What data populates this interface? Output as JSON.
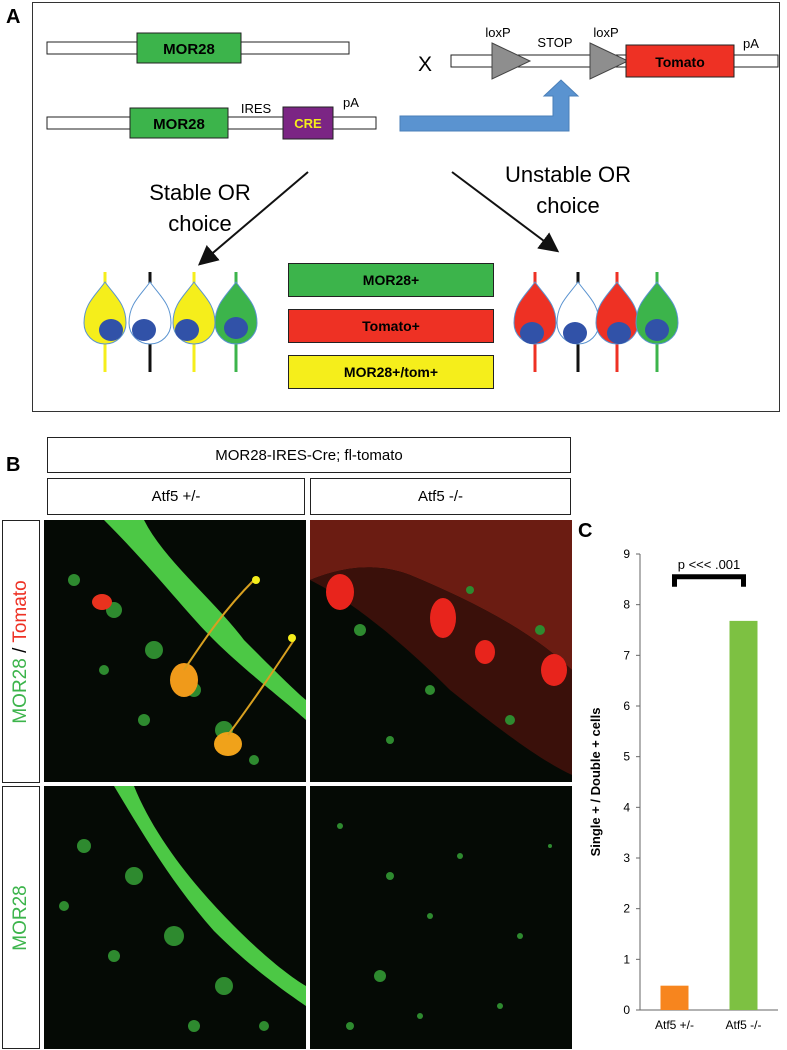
{
  "panelA": {
    "letter": "A",
    "gene1": "MOR28",
    "gene2": "MOR28",
    "ires": "IRES",
    "cre": "CRE",
    "pa1": "pA",
    "cross": "X",
    "loxp1": "loxP",
    "stop": "STOP",
    "loxp2": "loxP",
    "tomato": "Tomato",
    "pa2": "pA",
    "stable_line1": "Stable OR",
    "stable_line2": "choice",
    "unstable_line1": "Unstable OR",
    "unstable_line2": "choice",
    "legend": [
      "MOR28+",
      "Tomato+",
      "MOR28+/tom+"
    ],
    "colors": {
      "green": "#3cb44b",
      "red": "#ee3124",
      "yellow": "#f5ee1b",
      "purple": "#7b2584",
      "blue": "#5a93d0",
      "nucleus": "#3152a8"
    }
  },
  "panelB": {
    "letter": "B",
    "header": "MOR28-IRES-Cre; fl-tomato",
    "col1": "Atf5 +/-",
    "col2": "Atf5 -/-",
    "row1_green": "MOR28",
    "row1_sep": " / ",
    "row1_red": "Tomato",
    "row2": "MOR28"
  },
  "panelC": {
    "letter": "C",
    "significance": "p <<< .001"
  },
  "chart_data": {
    "type": "bar",
    "categories": [
      "Atf5 +/-",
      "Atf5 -/-"
    ],
    "values": [
      0.48,
      7.68
    ],
    "colors": [
      "#f7851e",
      "#7dc142"
    ],
    "ylabel": "Single + / Double + cells",
    "ylim": [
      0,
      9
    ],
    "yticks": [
      0,
      1,
      2,
      3,
      4,
      5,
      6,
      7,
      8,
      9
    ],
    "grid": false
  }
}
